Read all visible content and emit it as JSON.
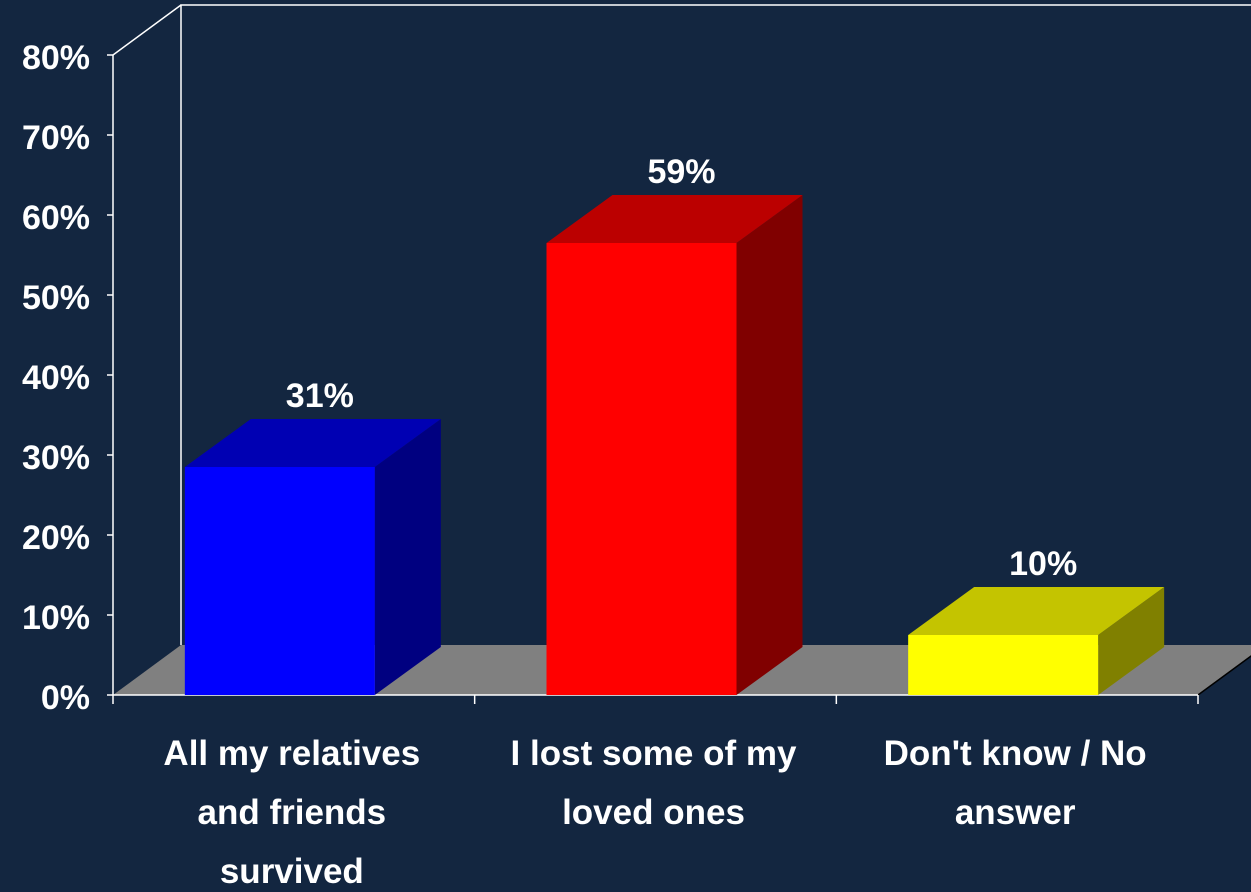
{
  "chart_data": {
    "type": "bar",
    "categories": [
      [
        "All my relatives",
        "and friends",
        "survived"
      ],
      [
        "I lost some of my",
        "loved ones"
      ],
      [
        "Don't know / No",
        "answer"
      ]
    ],
    "values": [
      31,
      59,
      10
    ],
    "data_labels": [
      "31%",
      "59%",
      "10%"
    ],
    "ylim": [
      0,
      80
    ],
    "yticks": [
      "0%",
      "10%",
      "20%",
      "30%",
      "40%",
      "50%",
      "60%",
      "70%",
      "80%"
    ],
    "title": "",
    "xlabel": "",
    "ylabel": "",
    "grid": false,
    "three_d": true,
    "colors": {
      "background": "#132640",
      "floor": "#808080",
      "axis": "#ffffff",
      "bars": [
        {
          "front": "#0000ff",
          "top": "#0000b3",
          "side": "#000080"
        },
        {
          "front": "#ff0000",
          "top": "#bb0000",
          "side": "#800000"
        },
        {
          "front": "#ffff00",
          "top": "#c4c400",
          "side": "#808000"
        }
      ]
    }
  }
}
